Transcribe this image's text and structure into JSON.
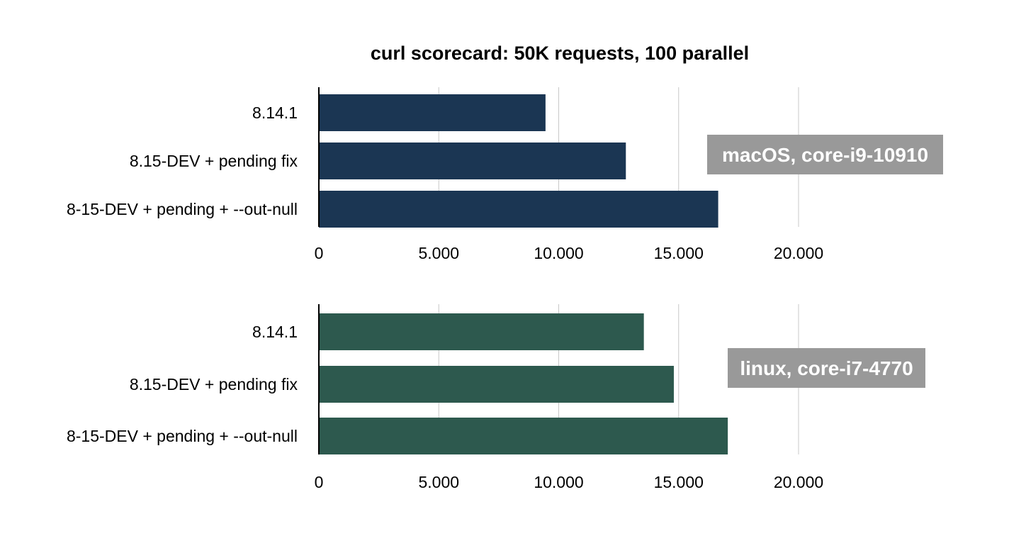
{
  "chart_title": "curl scorecard: 50K requests, 100 parallel",
  "chart_data": [
    {
      "type": "bar",
      "orientation": "horizontal",
      "title": "curl scorecard: 50K requests, 100 parallel",
      "annotation": "macOS, core-i9-10910",
      "color": "#1b3653",
      "categories": [
        "8.14.1",
        "8.15-DEV + pending fix",
        "8-15-DEV + pending + --out-null"
      ],
      "values": [
        9450,
        12800,
        16650
      ],
      "xlim": [
        0,
        25000
      ],
      "xticks": [
        0,
        5000,
        10000,
        15000,
        20000
      ],
      "xtick_labels": [
        "0",
        "5.000",
        "10.000",
        "15.000",
        "20.000"
      ],
      "grid": true
    },
    {
      "type": "bar",
      "orientation": "horizontal",
      "annotation": "linux, core-i7-4770",
      "color": "#2d594e",
      "categories": [
        "8.14.1",
        "8.15-DEV + pending fix",
        "8-15-DEV + pending + --out-null"
      ],
      "values": [
        13550,
        14800,
        17050
      ],
      "xlim": [
        0,
        25000
      ],
      "xticks": [
        0,
        5000,
        10000,
        15000,
        20000
      ],
      "xtick_labels": [
        "0",
        "5.000",
        "10.000",
        "15.000",
        "20.000"
      ],
      "grid": true
    }
  ],
  "colors": {
    "badge": "#999999",
    "grid": "#c8c8c8",
    "axis": "#000000"
  }
}
